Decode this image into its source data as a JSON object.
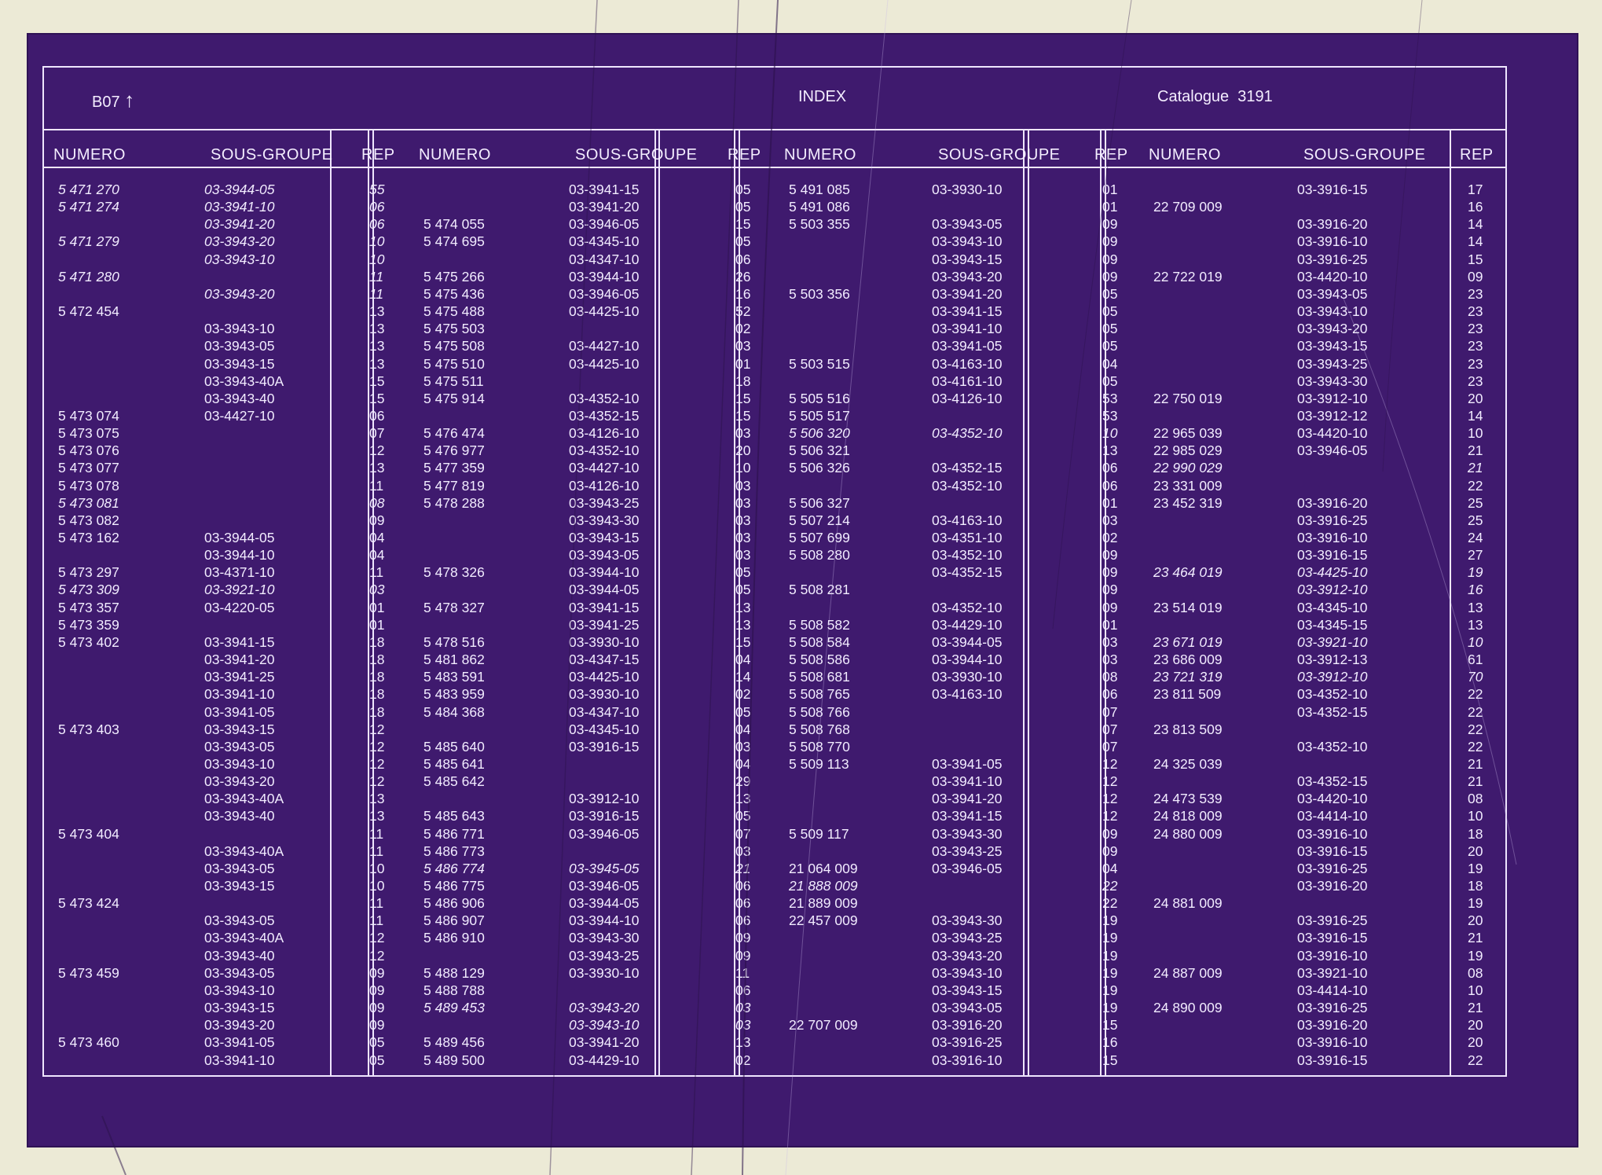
{
  "header": {
    "section": "B07",
    "arrow": "↑",
    "title": "INDEX",
    "catalogue": "Catalogue  3191"
  },
  "columns": {
    "numero": "NUMERO",
    "sous_groupe": "SOUS-GROUPE",
    "rep": "REP"
  },
  "blocks": [
    {
      "rows": [
        {
          "n": "5 471 270",
          "s": "03-3944-05",
          "r": "55",
          "i": 1
        },
        {
          "n": "5 471 274",
          "s": "03-3941-10",
          "r": "06",
          "i": 1
        },
        {
          "n": "",
          "s": "03-3941-20",
          "r": "06",
          "i": 1
        },
        {
          "n": "5 471 279",
          "s": "03-3943-20",
          "r": "10",
          "i": 1
        },
        {
          "n": "",
          "s": "03-3943-10",
          "r": "10",
          "i": 1
        },
        {
          "n": "5 471 280",
          "s": "",
          "r": "11",
          "i": 1
        },
        {
          "n": "",
          "s": "03-3943-20",
          "r": "11",
          "i": 1
        },
        {
          "n": "5 472 454",
          "s": "",
          "r": "13"
        },
        {
          "n": "",
          "s": "03-3943-10",
          "r": "13"
        },
        {
          "n": "",
          "s": "03-3943-05",
          "r": "13"
        },
        {
          "n": "",
          "s": "03-3943-15",
          "r": "13"
        },
        {
          "n": "",
          "s": "03-3943-40A",
          "r": "15"
        },
        {
          "n": "",
          "s": "03-3943-40",
          "r": "15"
        },
        {
          "n": "5 473 074",
          "s": "03-4427-10",
          "r": "06"
        },
        {
          "n": "5 473 075",
          "s": "",
          "r": "07"
        },
        {
          "n": "5 473 076",
          "s": "",
          "r": "12"
        },
        {
          "n": "5 473 077",
          "s": "",
          "r": "13"
        },
        {
          "n": "5 473 078",
          "s": "",
          "r": "11"
        },
        {
          "n": "5 473 081",
          "s": "",
          "r": "08",
          "i": 1
        },
        {
          "n": "5 473 082",
          "s": "",
          "r": "09"
        },
        {
          "n": "5 473 162",
          "s": "03-3944-05",
          "r": "04"
        },
        {
          "n": "",
          "s": "03-3944-10",
          "r": "04"
        },
        {
          "n": "5 473 297",
          "s": "03-4371-10",
          "r": "11"
        },
        {
          "n": "5 473 309",
          "s": "03-3921-10",
          "r": "03",
          "i": 1
        },
        {
          "n": "5 473 357",
          "s": "03-4220-05",
          "r": "01"
        },
        {
          "n": "5 473 359",
          "s": "",
          "r": "01"
        },
        {
          "n": "5 473 402",
          "s": "03-3941-15",
          "r": "18"
        },
        {
          "n": "",
          "s": "03-3941-20",
          "r": "18"
        },
        {
          "n": "",
          "s": "03-3941-25",
          "r": "18"
        },
        {
          "n": "",
          "s": "03-3941-10",
          "r": "18"
        },
        {
          "n": "",
          "s": "03-3941-05",
          "r": "18"
        },
        {
          "n": "5 473 403",
          "s": "03-3943-15",
          "r": "12"
        },
        {
          "n": "",
          "s": "03-3943-05",
          "r": "12"
        },
        {
          "n": "",
          "s": "03-3943-10",
          "r": "12"
        },
        {
          "n": "",
          "s": "03-3943-20",
          "r": "12"
        },
        {
          "n": "",
          "s": "03-3943-40A",
          "r": "13"
        },
        {
          "n": "",
          "s": "03-3943-40",
          "r": "13"
        },
        {
          "n": "5 473 404",
          "s": "",
          "r": "11"
        },
        {
          "n": "",
          "s": "03-3943-40A",
          "r": "11"
        },
        {
          "n": "",
          "s": "03-3943-05",
          "r": "10"
        },
        {
          "n": "",
          "s": "03-3943-15",
          "r": "10"
        },
        {
          "n": "5 473 424",
          "s": "",
          "r": "11"
        },
        {
          "n": "",
          "s": "03-3943-05",
          "r": "11"
        },
        {
          "n": "",
          "s": "03-3943-40A",
          "r": "12"
        },
        {
          "n": "",
          "s": "03-3943-40",
          "r": "12"
        },
        {
          "n": "5 473 459",
          "s": "03-3943-05",
          "r": "09"
        },
        {
          "n": "",
          "s": "03-3943-10",
          "r": "09"
        },
        {
          "n": "",
          "s": "03-3943-15",
          "r": "09"
        },
        {
          "n": "",
          "s": "03-3943-20",
          "r": "09"
        },
        {
          "n": "5 473 460",
          "s": "03-3941-05",
          "r": "05"
        },
        {
          "n": "",
          "s": "03-3941-10",
          "r": "05"
        }
      ]
    },
    {
      "rows": [
        {
          "n": "",
          "s": "03-3941-15",
          "r": "05"
        },
        {
          "n": "",
          "s": "03-3941-20",
          "r": "05"
        },
        {
          "n": "5 474 055",
          "s": "03-3946-05",
          "r": "15"
        },
        {
          "n": "5 474 695",
          "s": "03-4345-10",
          "r": "05"
        },
        {
          "n": "",
          "s": "03-4347-10",
          "r": "06"
        },
        {
          "n": "5 475 266",
          "s": "03-3944-10",
          "r": "26"
        },
        {
          "n": "5 475 436",
          "s": "03-3946-05",
          "r": "16"
        },
        {
          "n": "5 475 488",
          "s": "03-4425-10",
          "r": "52"
        },
        {
          "n": "5 475 503",
          "s": "",
          "r": "02"
        },
        {
          "n": "5 475 508",
          "s": "03-4427-10",
          "r": "03"
        },
        {
          "n": "5 475 510",
          "s": "03-4425-10",
          "r": "01"
        },
        {
          "n": "5 475 511",
          "s": "",
          "r": "18"
        },
        {
          "n": "5 475 914",
          "s": "03-4352-10",
          "r": "15"
        },
        {
          "n": "",
          "s": "03-4352-15",
          "r": "15"
        },
        {
          "n": "5 476 474",
          "s": "03-4126-10",
          "r": "03"
        },
        {
          "n": "5 476 977",
          "s": "03-4352-10",
          "r": "20"
        },
        {
          "n": "5 477 359",
          "s": "03-4427-10",
          "r": "10"
        },
        {
          "n": "5 477 819",
          "s": "03-4126-10",
          "r": "03"
        },
        {
          "n": "5 478 288",
          "s": "03-3943-25",
          "r": "03"
        },
        {
          "n": "",
          "s": "03-3943-30",
          "r": "03"
        },
        {
          "n": "",
          "s": "03-3943-15",
          "r": "03"
        },
        {
          "n": "",
          "s": "03-3943-05",
          "r": "03"
        },
        {
          "n": "5 478 326",
          "s": "03-3944-10",
          "r": "05"
        },
        {
          "n": "",
          "s": "03-3944-05",
          "r": "05"
        },
        {
          "n": "5 478 327",
          "s": "03-3941-15",
          "r": "13"
        },
        {
          "n": "",
          "s": "03-3941-25",
          "r": "13"
        },
        {
          "n": "5 478 516",
          "s": "03-3930-10",
          "r": "15"
        },
        {
          "n": "5 481 862",
          "s": "03-4347-15",
          "r": "04"
        },
        {
          "n": "5 483 591",
          "s": "03-4425-10",
          "r": "14"
        },
        {
          "n": "5 483 959",
          "s": "03-3930-10",
          "r": "02"
        },
        {
          "n": "5 484 368",
          "s": "03-4347-10",
          "r": "05"
        },
        {
          "n": "",
          "s": "03-4345-10",
          "r": "04"
        },
        {
          "n": "5 485 640",
          "s": "03-3916-15",
          "r": "03"
        },
        {
          "n": "5 485 641",
          "s": "",
          "r": "04"
        },
        {
          "n": "5 485 642",
          "s": "",
          "r": "29"
        },
        {
          "n": "",
          "s": "03-3912-10",
          "r": "13"
        },
        {
          "n": "5 485 643",
          "s": "03-3916-15",
          "r": "05"
        },
        {
          "n": "5 486 771",
          "s": "03-3946-05",
          "r": "07"
        },
        {
          "n": "5 486 773",
          "s": "",
          "r": "03"
        },
        {
          "n": "5 486 774",
          "s": "03-3945-05",
          "r": "21",
          "i": 1
        },
        {
          "n": "5 486 775",
          "s": "03-3946-05",
          "r": "06"
        },
        {
          "n": "5 486 906",
          "s": "03-3944-05",
          "r": "06"
        },
        {
          "n": "5 486 907",
          "s": "03-3944-10",
          "r": "06"
        },
        {
          "n": "5 486 910",
          "s": "03-3943-30",
          "r": "09"
        },
        {
          "n": "",
          "s": "03-3943-25",
          "r": "09"
        },
        {
          "n": "5 488 129",
          "s": "03-3930-10",
          "r": "11"
        },
        {
          "n": "5 488 788",
          "s": "",
          "r": "06"
        },
        {
          "n": "5 489 453",
          "s": "03-3943-20",
          "r": "03",
          "i": 1
        },
        {
          "n": "",
          "s": "03-3943-10",
          "r": "03",
          "i": 1
        },
        {
          "n": "5 489 456",
          "s": "03-3941-20",
          "r": "13"
        },
        {
          "n": "5 489 500",
          "s": "03-4429-10",
          "r": "02"
        }
      ]
    },
    {
      "rows": [
        {
          "n": "5 491 085",
          "s": "03-3930-10",
          "r": "01"
        },
        {
          "n": "5 491 086",
          "s": "",
          "r": "01"
        },
        {
          "n": "5 503 355",
          "s": "03-3943-05",
          "r": "09"
        },
        {
          "n": "",
          "s": "03-3943-10",
          "r": "09"
        },
        {
          "n": "",
          "s": "03-3943-15",
          "r": "09"
        },
        {
          "n": "",
          "s": "03-3943-20",
          "r": "09"
        },
        {
          "n": "5 503 356",
          "s": "03-3941-20",
          "r": "05"
        },
        {
          "n": "",
          "s": "03-3941-15",
          "r": "05"
        },
        {
          "n": "",
          "s": "03-3941-10",
          "r": "05"
        },
        {
          "n": "",
          "s": "03-3941-05",
          "r": "05"
        },
        {
          "n": "5 503 515",
          "s": "03-4163-10",
          "r": "04"
        },
        {
          "n": "",
          "s": "03-4161-10",
          "r": "05"
        },
        {
          "n": "5 505 516",
          "s": "03-4126-10",
          "r": "53"
        },
        {
          "n": "5 505 517",
          "s": "",
          "r": "53"
        },
        {
          "n": "5 506 320",
          "s": "03-4352-10",
          "r": "10",
          "i": 1
        },
        {
          "n": "5 506 321",
          "s": "",
          "r": "13"
        },
        {
          "n": "5 506 326",
          "s": "03-4352-15",
          "r": "06"
        },
        {
          "n": "",
          "s": "03-4352-10",
          "r": "06"
        },
        {
          "n": "5 506 327",
          "s": "",
          "r": "01"
        },
        {
          "n": "5 507 214",
          "s": "03-4163-10",
          "r": "03"
        },
        {
          "n": "5 507 699",
          "s": "03-4351-10",
          "r": "02"
        },
        {
          "n": "5 508 280",
          "s": "03-4352-10",
          "r": "09"
        },
        {
          "n": "",
          "s": "03-4352-15",
          "r": "09"
        },
        {
          "n": "5 508 281",
          "s": "",
          "r": "09"
        },
        {
          "n": "",
          "s": "03-4352-10",
          "r": "09"
        },
        {
          "n": "5 508 582",
          "s": "03-4429-10",
          "r": "01"
        },
        {
          "n": "5 508 584",
          "s": "03-3944-05",
          "r": "03"
        },
        {
          "n": "5 508 586",
          "s": "03-3944-10",
          "r": "03"
        },
        {
          "n": "5 508 681",
          "s": "03-3930-10",
          "r": "08"
        },
        {
          "n": "5 508 765",
          "s": "03-4163-10",
          "r": "06"
        },
        {
          "n": "5 508 766",
          "s": "",
          "r": "07"
        },
        {
          "n": "5 508 768",
          "s": "",
          "r": "07"
        },
        {
          "n": "5 508 770",
          "s": "",
          "r": "07"
        },
        {
          "n": "5 509 113",
          "s": "03-3941-05",
          "r": "12"
        },
        {
          "n": "",
          "s": "03-3941-10",
          "r": "12"
        },
        {
          "n": "",
          "s": "03-3941-20",
          "r": "12"
        },
        {
          "n": "",
          "s": "03-3941-15",
          "r": "12"
        },
        {
          "n": "5 509 117",
          "s": "03-3943-30",
          "r": "09"
        },
        {
          "n": "",
          "s": "03-3943-25",
          "r": "09"
        },
        {
          "n": "21 064 009",
          "s": "03-3946-05",
          "r": "04"
        },
        {
          "n": "21 888 009",
          "s": "",
          "r": "22",
          "i": 1
        },
        {
          "n": "21 889 009",
          "s": "",
          "r": "22"
        },
        {
          "n": "22 457 009",
          "s": "03-3943-30",
          "r": "19"
        },
        {
          "n": "",
          "s": "03-3943-25",
          "r": "19"
        },
        {
          "n": "",
          "s": "03-3943-20",
          "r": "19"
        },
        {
          "n": "",
          "s": "03-3943-10",
          "r": "19"
        },
        {
          "n": "",
          "s": "03-3943-15",
          "r": "19"
        },
        {
          "n": "",
          "s": "03-3943-05",
          "r": "19"
        },
        {
          "n": "22 707 009",
          "s": "03-3916-20",
          "r": "15"
        },
        {
          "n": "",
          "s": "03-3916-25",
          "r": "16"
        },
        {
          "n": "",
          "s": "03-3916-10",
          "r": "15"
        }
      ]
    },
    {
      "rows": [
        {
          "n": "",
          "s": "03-3916-15",
          "r": "17"
        },
        {
          "n": "22 709 009",
          "s": "",
          "r": "16"
        },
        {
          "n": "",
          "s": "03-3916-20",
          "r": "14"
        },
        {
          "n": "",
          "s": "03-3916-10",
          "r": "14"
        },
        {
          "n": "",
          "s": "03-3916-25",
          "r": "15"
        },
        {
          "n": "22 722 019",
          "s": "03-4420-10",
          "r": "09"
        },
        {
          "n": "",
          "s": "03-3943-05",
          "r": "23"
        },
        {
          "n": "",
          "s": "03-3943-10",
          "r": "23"
        },
        {
          "n": "",
          "s": "03-3943-20",
          "r": "23"
        },
        {
          "n": "",
          "s": "03-3943-15",
          "r": "23"
        },
        {
          "n": "",
          "s": "03-3943-25",
          "r": "23"
        },
        {
          "n": "",
          "s": "03-3943-30",
          "r": "23"
        },
        {
          "n": "22 750 019",
          "s": "03-3912-10",
          "r": "20"
        },
        {
          "n": "",
          "s": "03-3912-12",
          "r": "14"
        },
        {
          "n": "22 965 039",
          "s": "03-4420-10",
          "r": "10"
        },
        {
          "n": "22 985 029",
          "s": "03-3946-05",
          "r": "21"
        },
        {
          "n": "22 990 029",
          "s": "",
          "r": "21",
          "i": 1
        },
        {
          "n": "23 331 009",
          "s": "",
          "r": "22"
        },
        {
          "n": "23 452 319",
          "s": "03-3916-20",
          "r": "25"
        },
        {
          "n": "",
          "s": "03-3916-25",
          "r": "25"
        },
        {
          "n": "",
          "s": "03-3916-10",
          "r": "24"
        },
        {
          "n": "",
          "s": "03-3916-15",
          "r": "27"
        },
        {
          "n": "23 464 019",
          "s": "03-4425-10",
          "r": "19",
          "i": 1
        },
        {
          "n": "",
          "s": "03-3912-10",
          "r": "16",
          "i": 1
        },
        {
          "n": "23 514 019",
          "s": "03-4345-10",
          "r": "13"
        },
        {
          "n": "",
          "s": "03-4345-15",
          "r": "13"
        },
        {
          "n": "23 671 019",
          "s": "03-3921-10",
          "r": "10",
          "i": 1
        },
        {
          "n": "23 686 009",
          "s": "03-3912-13",
          "r": "61"
        },
        {
          "n": "23 721 319",
          "s": "03-3912-10",
          "r": "70",
          "i": 1
        },
        {
          "n": "23 811 509",
          "s": "03-4352-10",
          "r": "22"
        },
        {
          "n": "",
          "s": "03-4352-15",
          "r": "22"
        },
        {
          "n": "23 813 509",
          "s": "",
          "r": "22"
        },
        {
          "n": "",
          "s": "03-4352-10",
          "r": "22"
        },
        {
          "n": "24 325 039",
          "s": "",
          "r": "21"
        },
        {
          "n": "",
          "s": "03-4352-15",
          "r": "21"
        },
        {
          "n": "24 473 539",
          "s": "03-4420-10",
          "r": "08"
        },
        {
          "n": "24 818 009",
          "s": "03-4414-10",
          "r": "10"
        },
        {
          "n": "24 880 009",
          "s": "03-3916-10",
          "r": "18"
        },
        {
          "n": "",
          "s": "03-3916-15",
          "r": "20"
        },
        {
          "n": "",
          "s": "03-3916-25",
          "r": "19"
        },
        {
          "n": "",
          "s": "03-3916-20",
          "r": "18"
        },
        {
          "n": "24 881 009",
          "s": "",
          "r": "19"
        },
        {
          "n": "",
          "s": "03-3916-25",
          "r": "20"
        },
        {
          "n": "",
          "s": "03-3916-15",
          "r": "21"
        },
        {
          "n": "",
          "s": "03-3916-10",
          "r": "19"
        },
        {
          "n": "24 887 009",
          "s": "03-3921-10",
          "r": "08"
        },
        {
          "n": "",
          "s": "03-4414-10",
          "r": "10"
        },
        {
          "n": "24 890 009",
          "s": "03-3916-25",
          "r": "21"
        },
        {
          "n": "",
          "s": "03-3916-20",
          "r": "20"
        },
        {
          "n": "",
          "s": "03-3916-10",
          "r": "20"
        },
        {
          "n": "",
          "s": "03-3916-15",
          "r": "22"
        }
      ]
    }
  ]
}
